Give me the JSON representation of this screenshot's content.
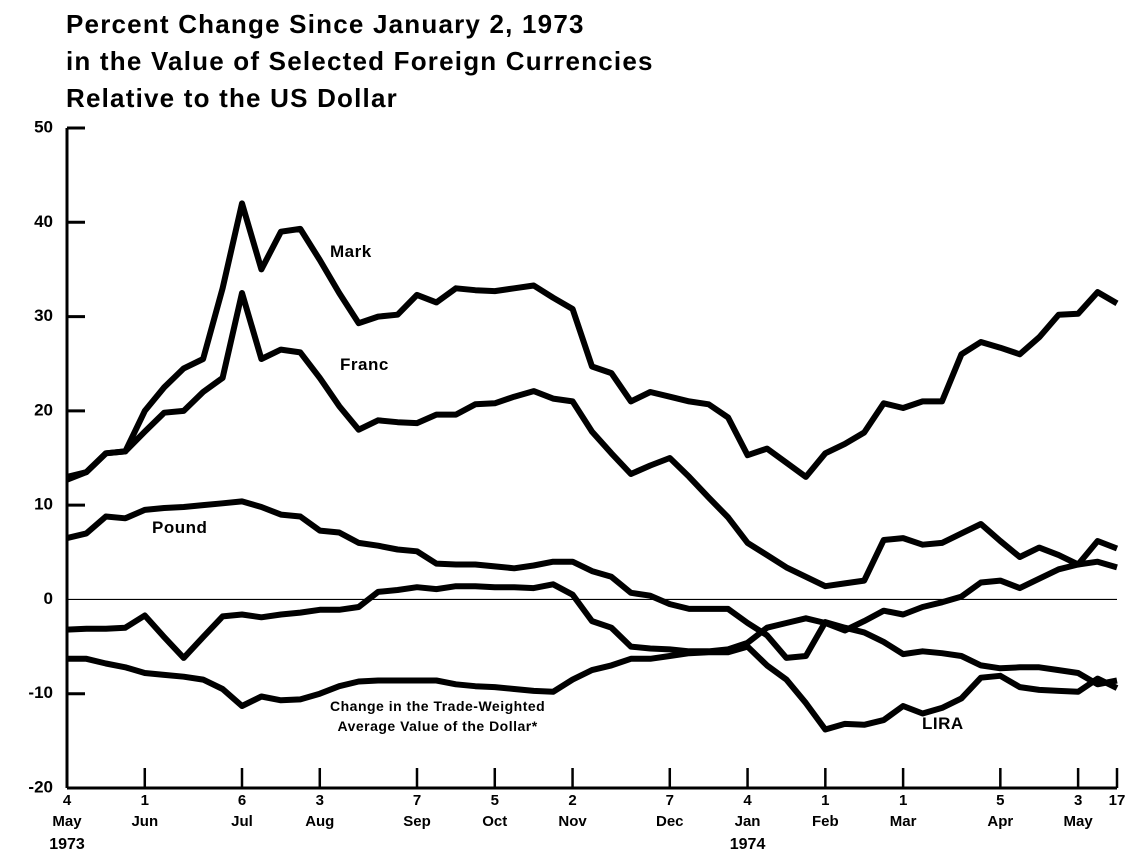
{
  "chart_data": {
    "type": "line",
    "title": "Percent Change Since January 2, 1973\nin the Value of Selected Foreign Currencies\nRelative to the US Dollar",
    "x": [
      "1973-05-04",
      "1973-05-11",
      "1973-05-18",
      "1973-05-25",
      "1973-06-01",
      "1973-06-08",
      "1973-06-15",
      "1973-06-22",
      "1973-06-29",
      "1973-07-06",
      "1973-07-13",
      "1973-07-20",
      "1973-07-27",
      "1973-08-03",
      "1973-08-10",
      "1973-08-17",
      "1973-08-24",
      "1973-08-31",
      "1973-09-07",
      "1973-09-14",
      "1973-09-21",
      "1973-09-28",
      "1973-10-05",
      "1973-10-12",
      "1973-10-19",
      "1973-10-26",
      "1973-11-02",
      "1973-11-09",
      "1973-11-16",
      "1973-11-23",
      "1973-11-30",
      "1973-12-07",
      "1973-12-14",
      "1973-12-21",
      "1973-12-28",
      "1974-01-04",
      "1974-01-11",
      "1974-01-18",
      "1974-01-25",
      "1974-02-01",
      "1974-02-08",
      "1974-02-15",
      "1974-02-22",
      "1974-03-01",
      "1974-03-08",
      "1974-03-15",
      "1974-03-22",
      "1974-03-29",
      "1974-04-05",
      "1974-04-12",
      "1974-04-19",
      "1974-04-26",
      "1974-05-03",
      "1974-05-10",
      "1974-05-17"
    ],
    "series": [
      {
        "name": "Mark",
        "color": "#000000",
        "values": [
          13,
          13.5,
          15.5,
          15.7,
          20,
          22.5,
          24.5,
          25.5,
          33,
          42,
          35,
          39,
          39.3,
          36,
          32.5,
          29.3,
          30,
          30.2,
          32.3,
          31.5,
          33,
          32.8,
          32.7,
          33,
          33.3,
          32,
          30.8,
          24.7,
          24,
          21,
          22,
          21.5,
          21,
          20.7,
          19.3,
          15.3,
          16,
          14.5,
          13,
          15.5,
          16.5,
          17.7,
          20.8,
          20.3,
          21,
          21,
          26,
          27.3,
          26.7,
          26,
          27.8,
          30.2,
          30.3,
          32.6,
          31.4
        ]
      },
      {
        "name": "Franc",
        "color": "#000000",
        "values": [
          12.7,
          13.5,
          15.5,
          15.7,
          17.8,
          19.8,
          20,
          22,
          23.5,
          32.5,
          25.5,
          26.5,
          26.2,
          23.5,
          20.5,
          18,
          19,
          18.8,
          18.7,
          19.6,
          19.6,
          20.7,
          20.8,
          21.5,
          22.1,
          21.3,
          21,
          17.8,
          15.5,
          13.3,
          14.2,
          15,
          13,
          10.8,
          8.7,
          6,
          4.7,
          3.4,
          2.4,
          1.4,
          1.7,
          2,
          6.3,
          6.5,
          5.8,
          6,
          7,
          8,
          6.2,
          4.5,
          5.5,
          4.7,
          3.7,
          6.2,
          5.4
        ]
      },
      {
        "name": "Pound",
        "color": "#000000",
        "values": [
          6.5,
          7,
          8.8,
          8.6,
          9.5,
          9.7,
          9.8,
          10,
          10.2,
          10.4,
          9.8,
          9,
          8.8,
          7.3,
          7.1,
          6,
          5.7,
          5.3,
          5.1,
          3.8,
          3.7,
          3.7,
          3.5,
          3.3,
          3.6,
          4,
          4,
          3,
          2.4,
          0.7,
          0.4,
          -0.5,
          -1,
          -1,
          -1,
          -2.5,
          -3.8,
          -6.2,
          -6,
          -2.4,
          -3,
          -3.5,
          -4.5,
          -5.8,
          -5.5,
          -5.7,
          -6,
          -7,
          -7.3,
          -7.2,
          -7.2,
          -7.5,
          -7.8,
          -9,
          -8.6
        ]
      },
      {
        "name": "Change in the Trade-Weighted\nAverage Value of the Dollar*",
        "color": "#000000",
        "values": [
          -3.2,
          -3.1,
          -3.1,
          -3,
          -1.7,
          -4,
          -6.2,
          -4,
          -1.8,
          -1.6,
          -1.9,
          -1.6,
          -1.4,
          -1.1,
          -1.1,
          -0.8,
          0.8,
          1,
          1.3,
          1.1,
          1.4,
          1.4,
          1.3,
          1.3,
          1.2,
          1.6,
          0.5,
          -2.3,
          -3,
          -5,
          -5.2,
          -5.3,
          -5.5,
          -5.5,
          -5.3,
          -4.6,
          -3,
          -2.5,
          -2,
          -2.5,
          -3.3,
          -2.3,
          -1.2,
          -1.6,
          -0.8,
          -0.3,
          0.3,
          1.8,
          2,
          1.2,
          2.2,
          3.2,
          3.7,
          4,
          3.4
        ]
      },
      {
        "name": "LIRA",
        "color": "#000000",
        "values": [
          -6.3,
          -6.3,
          -6.8,
          -7.2,
          -7.8,
          -8,
          -8.2,
          -8.5,
          -9.5,
          -11.3,
          -10.3,
          -10.7,
          -10.6,
          -10,
          -9.2,
          -8.7,
          -8.6,
          -8.6,
          -8.6,
          -8.6,
          -9,
          -9.2,
          -9.3,
          -9.5,
          -9.7,
          -9.8,
          -8.5,
          -7.5,
          -7,
          -6.3,
          -6.3,
          -6,
          -5.7,
          -5.6,
          -5.6,
          -5,
          -7,
          -8.5,
          -11,
          -13.8,
          -13.2,
          -13.3,
          -12.8,
          -11.3,
          -12.1,
          -11.5,
          -10.5,
          -8.3,
          -8.1,
          -9.3,
          -9.6,
          -9.7,
          -9.8,
          -8.4,
          -9.4
        ]
      }
    ],
    "xlim": [
      "1973-05-04",
      "1974-05-17"
    ],
    "xticks": [
      {
        "value": "1973-05-04",
        "label": "4",
        "month": "May"
      },
      {
        "value": "1973-06-01",
        "label": "1",
        "month": "Jun"
      },
      {
        "value": "1973-07-06",
        "label": "6",
        "month": "Jul"
      },
      {
        "value": "1973-08-03",
        "label": "3",
        "month": "Aug"
      },
      {
        "value": "1973-09-07",
        "label": "7",
        "month": "Sep"
      },
      {
        "value": "1973-10-05",
        "label": "5",
        "month": "Oct"
      },
      {
        "value": "1973-11-02",
        "label": "2",
        "month": "Nov"
      },
      {
        "value": "1973-12-07",
        "label": "7",
        "month": "Dec"
      },
      {
        "value": "1974-01-04",
        "label": "4",
        "month": "Jan"
      },
      {
        "value": "1974-02-01",
        "label": "1",
        "month": "Feb"
      },
      {
        "value": "1974-03-01",
        "label": "1",
        "month": "Mar"
      },
      {
        "value": "1974-04-05",
        "label": "5",
        "month": "Apr"
      },
      {
        "value": "1974-05-03",
        "label": "3",
        "month": "May"
      },
      {
        "value": "1974-05-17",
        "label": "17"
      }
    ],
    "year_labels": [
      {
        "value": "1973-05-04",
        "label": "1973"
      },
      {
        "value": "1974-01-04",
        "label": "1974"
      }
    ],
    "ylim": [
      -20,
      50
    ],
    "yticks": [
      -20,
      -10,
      0,
      10,
      20,
      30,
      40,
      50
    ],
    "grid": false
  }
}
